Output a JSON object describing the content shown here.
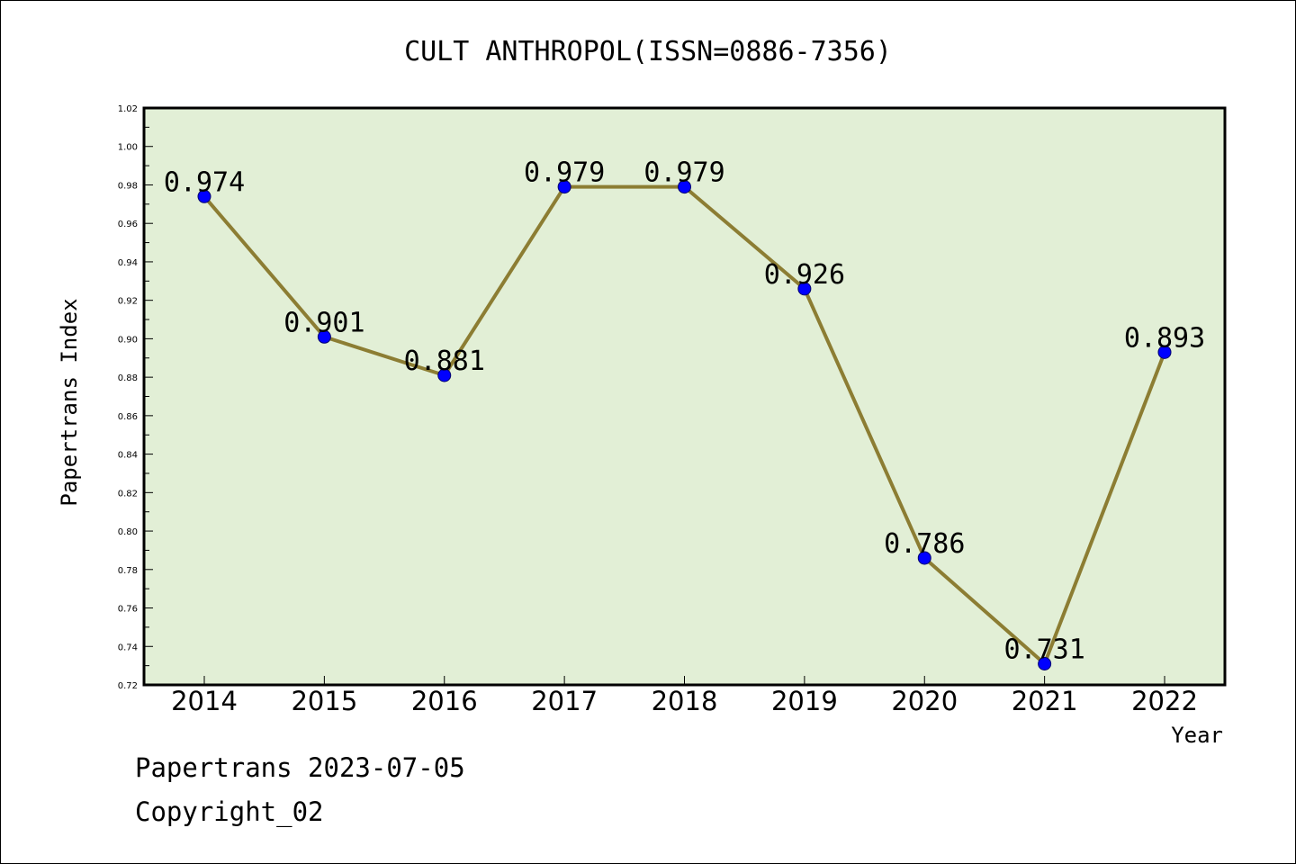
{
  "chart_data": {
    "type": "line",
    "title": "CULT ANTHROPOL(ISSN=0886-7356)",
    "xlabel": "Year",
    "ylabel": "Papertrans Index",
    "categories": [
      "2014",
      "2015",
      "2016",
      "2017",
      "2018",
      "2019",
      "2020",
      "2021",
      "2022"
    ],
    "series": [
      {
        "values": [
          0.974,
          0.901,
          0.881,
          0.979,
          0.979,
          0.926,
          0.786,
          0.731,
          0.893
        ],
        "labels": [
          "0.974",
          "0.901",
          "0.881",
          "0.979",
          "0.979",
          "0.926",
          "0.786",
          "0.731",
          "0.893"
        ]
      }
    ],
    "ylim": [
      0.72,
      1.02
    ],
    "yticks": [
      "0.72",
      "0.74",
      "0.76",
      "0.78",
      "0.80",
      "0.82",
      "0.84",
      "0.86",
      "0.88",
      "0.90",
      "0.92",
      "0.94",
      "0.96",
      "0.98",
      "1.00",
      "1.02"
    ],
    "grid": false,
    "colors": {
      "plot_background": "#e2efd6",
      "line": "#8c7d33",
      "marker": "#0000ff"
    }
  },
  "footer": {
    "line1": "Papertrans 2023-07-05",
    "line2": "Copyright_02"
  }
}
